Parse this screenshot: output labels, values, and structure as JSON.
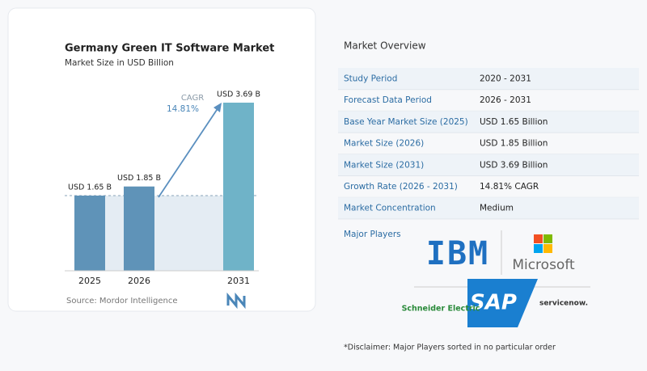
{
  "chart_data": {
    "type": "bar",
    "title": "Germany Green IT Software Market",
    "subtitle": "Market Size in USD Billion",
    "categories": [
      "2025",
      "2026",
      "2031"
    ],
    "values": [
      1.65,
      1.85,
      3.69
    ],
    "value_labels": [
      "USD 1.65 B",
      "USD 1.85 B",
      "USD 3.69 B"
    ],
    "colors": [
      "#5f93b8",
      "#5f93b8",
      "#6fb3c8"
    ],
    "annotation": {
      "label": "CAGR",
      "value": "14.81%"
    },
    "source": "Source: Mordor Intelligence"
  },
  "overview": {
    "title": "Market Overview",
    "rows": [
      [
        "Study Period",
        "2020 - 2031"
      ],
      [
        "Forecast Data Period",
        "2026 - 2031"
      ],
      [
        "Base Year Market Size (2025)",
        "USD 1.65 Billion"
      ],
      [
        "Market Size (2026)",
        "USD 1.85 Billion"
      ],
      [
        "Market Size (2031)",
        "USD 3.69 Billion"
      ],
      [
        "Growth Rate (2026 - 2031)",
        "14.81% CAGR"
      ],
      [
        "Market Concentration",
        "Medium"
      ]
    ],
    "players_label": "Major Players",
    "players": [
      "IBM",
      "Microsoft",
      "SAP",
      "Schneider Electric",
      "servicenow."
    ],
    "disclaimer": "*Disclaimer: Major Players sorted in no particular order"
  }
}
